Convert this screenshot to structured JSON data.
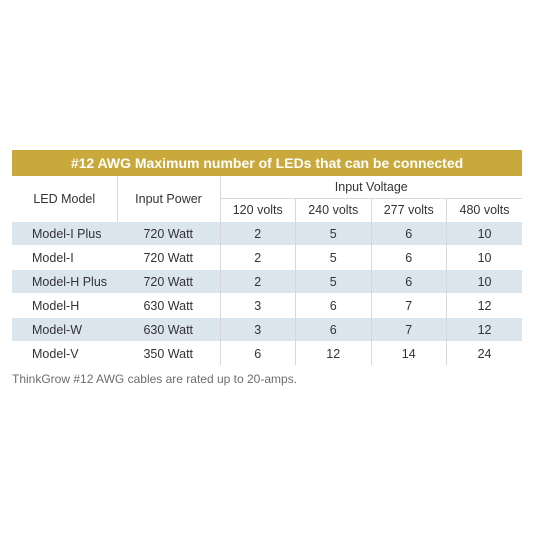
{
  "title": "#12 AWG Maximum number of LEDs that can be connected",
  "headers": {
    "model": "LED Model",
    "power": "Input Power",
    "voltage_group": "Input Voltage",
    "voltages": [
      "120 volts",
      "240 volts",
      "277 volts",
      "480 volts"
    ]
  },
  "rows": [
    {
      "model": "Model-I Plus",
      "power": "720 Watt",
      "values": [
        "2",
        "5",
        "6",
        "10"
      ]
    },
    {
      "model": "Model-I",
      "power": "720 Watt",
      "values": [
        "2",
        "5",
        "6",
        "10"
      ]
    },
    {
      "model": "Model-H Plus",
      "power": "720 Watt",
      "values": [
        "2",
        "5",
        "6",
        "10"
      ]
    },
    {
      "model": "Model-H",
      "power": "630 Watt",
      "values": [
        "3",
        "6",
        "7",
        "12"
      ]
    },
    {
      "model": "Model-W",
      "power": "630 Watt",
      "values": [
        "3",
        "6",
        "7",
        "12"
      ]
    },
    {
      "model": "Model-V",
      "power": "350 Watt",
      "values": [
        "6",
        "12",
        "14",
        "24"
      ]
    }
  ],
  "footnote": "ThinkGrow #12 AWG cables are rated up to 20-amps.",
  "colors": {
    "title_bar": "#c9a93b",
    "row_shade": "#dbe5ee"
  }
}
